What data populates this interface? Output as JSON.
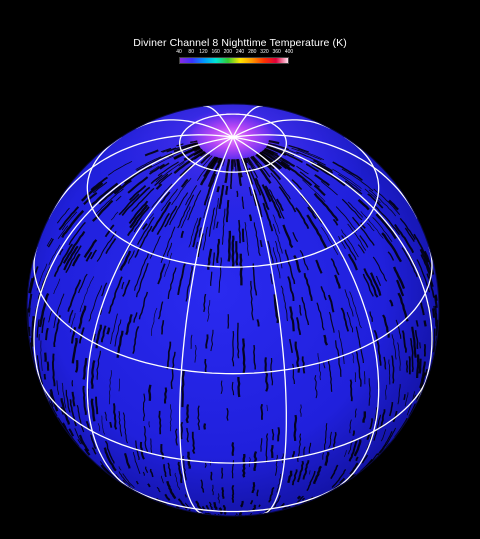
{
  "title": "Diviner Channel 8 Nighttime Temperature (K)",
  "colorbar": {
    "ticks": [
      "40",
      "80",
      "120",
      "160",
      "200",
      "240",
      "280",
      "320",
      "360",
      "400"
    ],
    "colors": [
      "#8a2be2",
      "#3b33ff",
      "#0099ff",
      "#00e5d4",
      "#33cc33",
      "#ffe600",
      "#ff9900",
      "#ff3300",
      "#e0003a",
      "#ffe0f0"
    ]
  },
  "globe_colors": {
    "background": "#000000",
    "surface": "#2222e6",
    "limb": "#1818b0",
    "polar_cap": "#c050ff",
    "stripes": "#000000",
    "graticule": "#ffffff"
  }
}
